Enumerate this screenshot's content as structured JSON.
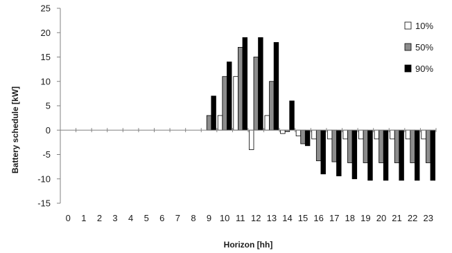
{
  "chart_data": {
    "type": "bar",
    "xlabel": "Horizon [hh]",
    "ylabel": "Battery schedule  [kW]",
    "ylim": [
      -15,
      25
    ],
    "yticks": [
      25,
      20,
      15,
      10,
      5,
      0,
      -5,
      -10,
      -15
    ],
    "categories": [
      "0",
      "1",
      "2",
      "3",
      "4",
      "5",
      "6",
      "7",
      "8",
      "9",
      "10",
      "11",
      "12",
      "13",
      "14",
      "15",
      "16",
      "17",
      "18",
      "19",
      "20",
      "21",
      "22",
      "23"
    ],
    "legend_position": "right",
    "grid": false,
    "series": [
      {
        "name": "10%",
        "color": "#ffffff",
        "values": [
          0,
          0,
          0,
          0,
          0,
          0,
          0,
          0,
          0,
          0,
          3,
          11,
          -4,
          3,
          -0.7,
          -1.2,
          -1.8,
          -1.8,
          -1.8,
          -1.8,
          -1.8,
          -1.8,
          -1.8,
          -1.8
        ]
      },
      {
        "name": "50%",
        "color": "#8c8c8c",
        "values": [
          0,
          0,
          0,
          0,
          0,
          0,
          0,
          0,
          0,
          3,
          11,
          17,
          15,
          10,
          -0.3,
          -2.8,
          -6.3,
          -6.5,
          -6.7,
          -6.7,
          -6.7,
          -6.7,
          -6.7,
          -6.7
        ]
      },
      {
        "name": "90%",
        "color": "#000000",
        "values": [
          0,
          0,
          0,
          0,
          0,
          0,
          0,
          0,
          0,
          7,
          14,
          19,
          19,
          18,
          6,
          -3.2,
          -9,
          -9.4,
          -10,
          -10.3,
          -10.3,
          -10.3,
          -10.3,
          -10.3
        ]
      }
    ]
  }
}
